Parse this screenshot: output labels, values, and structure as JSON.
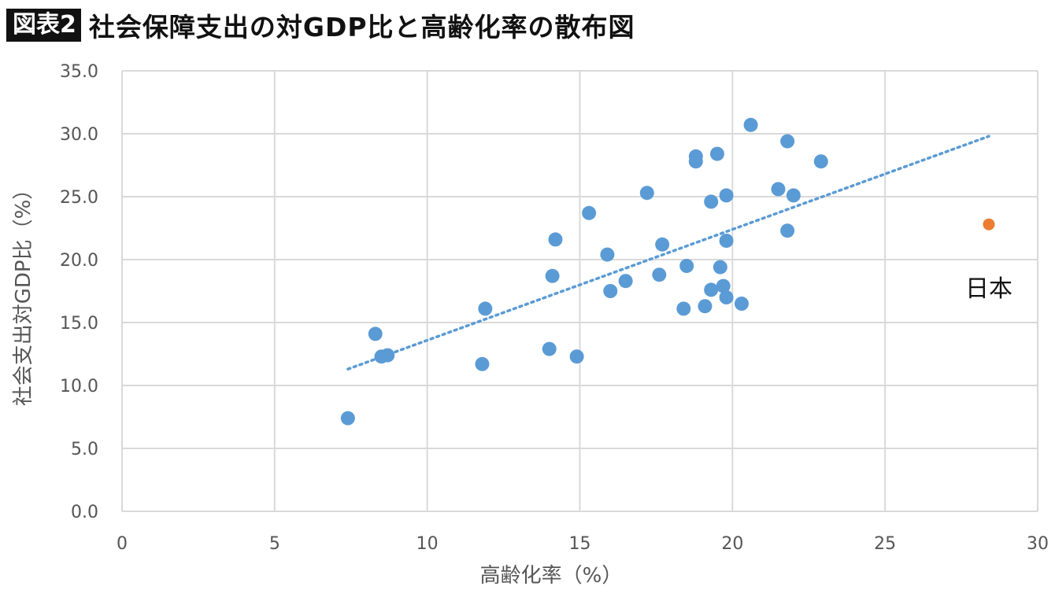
{
  "header": {
    "tag": "図表2",
    "title": "社会保障支出の対GDP比と高齢化率の散布図"
  },
  "chart_data": {
    "type": "scatter",
    "title": "社会保障支出の対GDP比と高齢化率の散布図",
    "xlabel": "高齢化率（%）",
    "ylabel": "社会支出対GDP比（%）",
    "xlim": [
      0,
      30
    ],
    "ylim": [
      0,
      35
    ],
    "x_ticks": [
      "0",
      "5",
      "10",
      "15",
      "20",
      "25",
      "30"
    ],
    "y_ticks": [
      "0.0",
      "5.0",
      "10.0",
      "15.0",
      "20.0",
      "25.0",
      "30.0",
      "35.0"
    ],
    "grid": true,
    "colors": {
      "points": "#5b9bd5",
      "highlight": "#ed7d31",
      "trend": "#5b9bd5",
      "grid": "#d9d9d9"
    },
    "points": [
      {
        "x": 7.4,
        "y": 7.4
      },
      {
        "x": 8.3,
        "y": 14.1
      },
      {
        "x": 8.5,
        "y": 12.3
      },
      {
        "x": 8.7,
        "y": 12.4
      },
      {
        "x": 11.8,
        "y": 11.7
      },
      {
        "x": 11.9,
        "y": 16.1
      },
      {
        "x": 14.0,
        "y": 12.9
      },
      {
        "x": 14.1,
        "y": 18.7
      },
      {
        "x": 14.2,
        "y": 21.6
      },
      {
        "x": 14.9,
        "y": 12.3
      },
      {
        "x": 15.3,
        "y": 23.7
      },
      {
        "x": 15.9,
        "y": 20.4
      },
      {
        "x": 16.0,
        "y": 17.5
      },
      {
        "x": 16.5,
        "y": 18.3
      },
      {
        "x": 17.2,
        "y": 25.3
      },
      {
        "x": 17.6,
        "y": 18.8
      },
      {
        "x": 17.7,
        "y": 21.2
      },
      {
        "x": 18.4,
        "y": 16.1
      },
      {
        "x": 18.5,
        "y": 19.5
      },
      {
        "x": 18.8,
        "y": 27.8
      },
      {
        "x": 18.8,
        "y": 28.2
      },
      {
        "x": 19.1,
        "y": 16.3
      },
      {
        "x": 19.3,
        "y": 24.6
      },
      {
        "x": 19.3,
        "y": 17.6
      },
      {
        "x": 19.5,
        "y": 28.4
      },
      {
        "x": 19.6,
        "y": 19.4
      },
      {
        "x": 19.7,
        "y": 17.9
      },
      {
        "x": 19.8,
        "y": 17.0
      },
      {
        "x": 19.8,
        "y": 21.5
      },
      {
        "x": 19.8,
        "y": 25.1
      },
      {
        "x": 20.3,
        "y": 16.5
      },
      {
        "x": 20.6,
        "y": 30.7
      },
      {
        "x": 21.5,
        "y": 25.6
      },
      {
        "x": 21.8,
        "y": 29.4
      },
      {
        "x": 21.8,
        "y": 22.3
      },
      {
        "x": 22.0,
        "y": 25.1
      },
      {
        "x": 22.9,
        "y": 27.8
      }
    ],
    "highlight": {
      "label": "日本",
      "x": 28.4,
      "y": 22.8
    },
    "trendline": {
      "style": "dotted",
      "x": [
        7.4,
        28.4
      ],
      "y": [
        11.3,
        29.8
      ]
    }
  }
}
